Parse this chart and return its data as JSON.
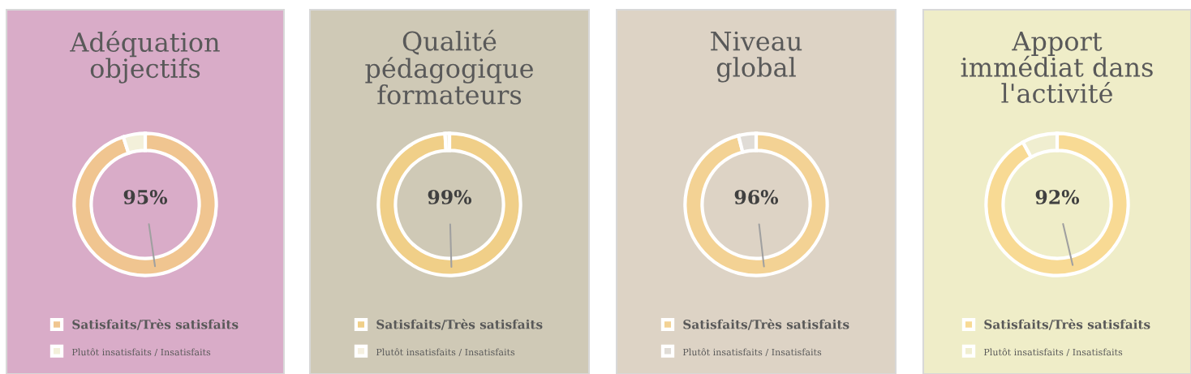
{
  "chart_data": [
    {
      "type": "donut",
      "title": "Adéquation\nobjectifs",
      "categories": [
        "Satisfaits/Très satisfaits",
        "Plutôt insatisfaits / Insatisfaits"
      ],
      "values": [
        95,
        5
      ],
      "colors": [
        "#f0c590",
        "#f3f0da"
      ],
      "value_labels": [
        "95%",
        null
      ],
      "legend": "bottom"
    },
    {
      "type": "donut",
      "title": "Qualité\npédagogique\nformateurs",
      "categories": [
        "Satisfaits/Très satisfaits",
        "Plutôt insatisfaits / Insatisfaits"
      ],
      "values": [
        99,
        1
      ],
      "colors": [
        "#f0cf88",
        "#f5f0e0"
      ],
      "value_labels": [
        "99%",
        null
      ],
      "legend": "bottom"
    },
    {
      "type": "donut",
      "title": "Niveau\nglobal",
      "categories": [
        "Satisfaits/Très satisfaits",
        "Plutôt insatisfaits / Insatisfaits"
      ],
      "values": [
        96,
        4
      ],
      "colors": [
        "#f3d294",
        "#e0dcd6"
      ],
      "value_labels": [
        "96%",
        null
      ],
      "legend": "bottom"
    },
    {
      "type": "donut",
      "title": "Apport\nimmédiat dans\nl'activité",
      "categories": [
        "Satisfaits/Très satisfaits",
        "Plutôt insatisfaits / Insatisfaits"
      ],
      "values": [
        92,
        8
      ],
      "colors": [
        "#f8da94",
        "#f0eed0"
      ],
      "value_labels": [
        "92%",
        null
      ],
      "legend": "bottom"
    }
  ]
}
